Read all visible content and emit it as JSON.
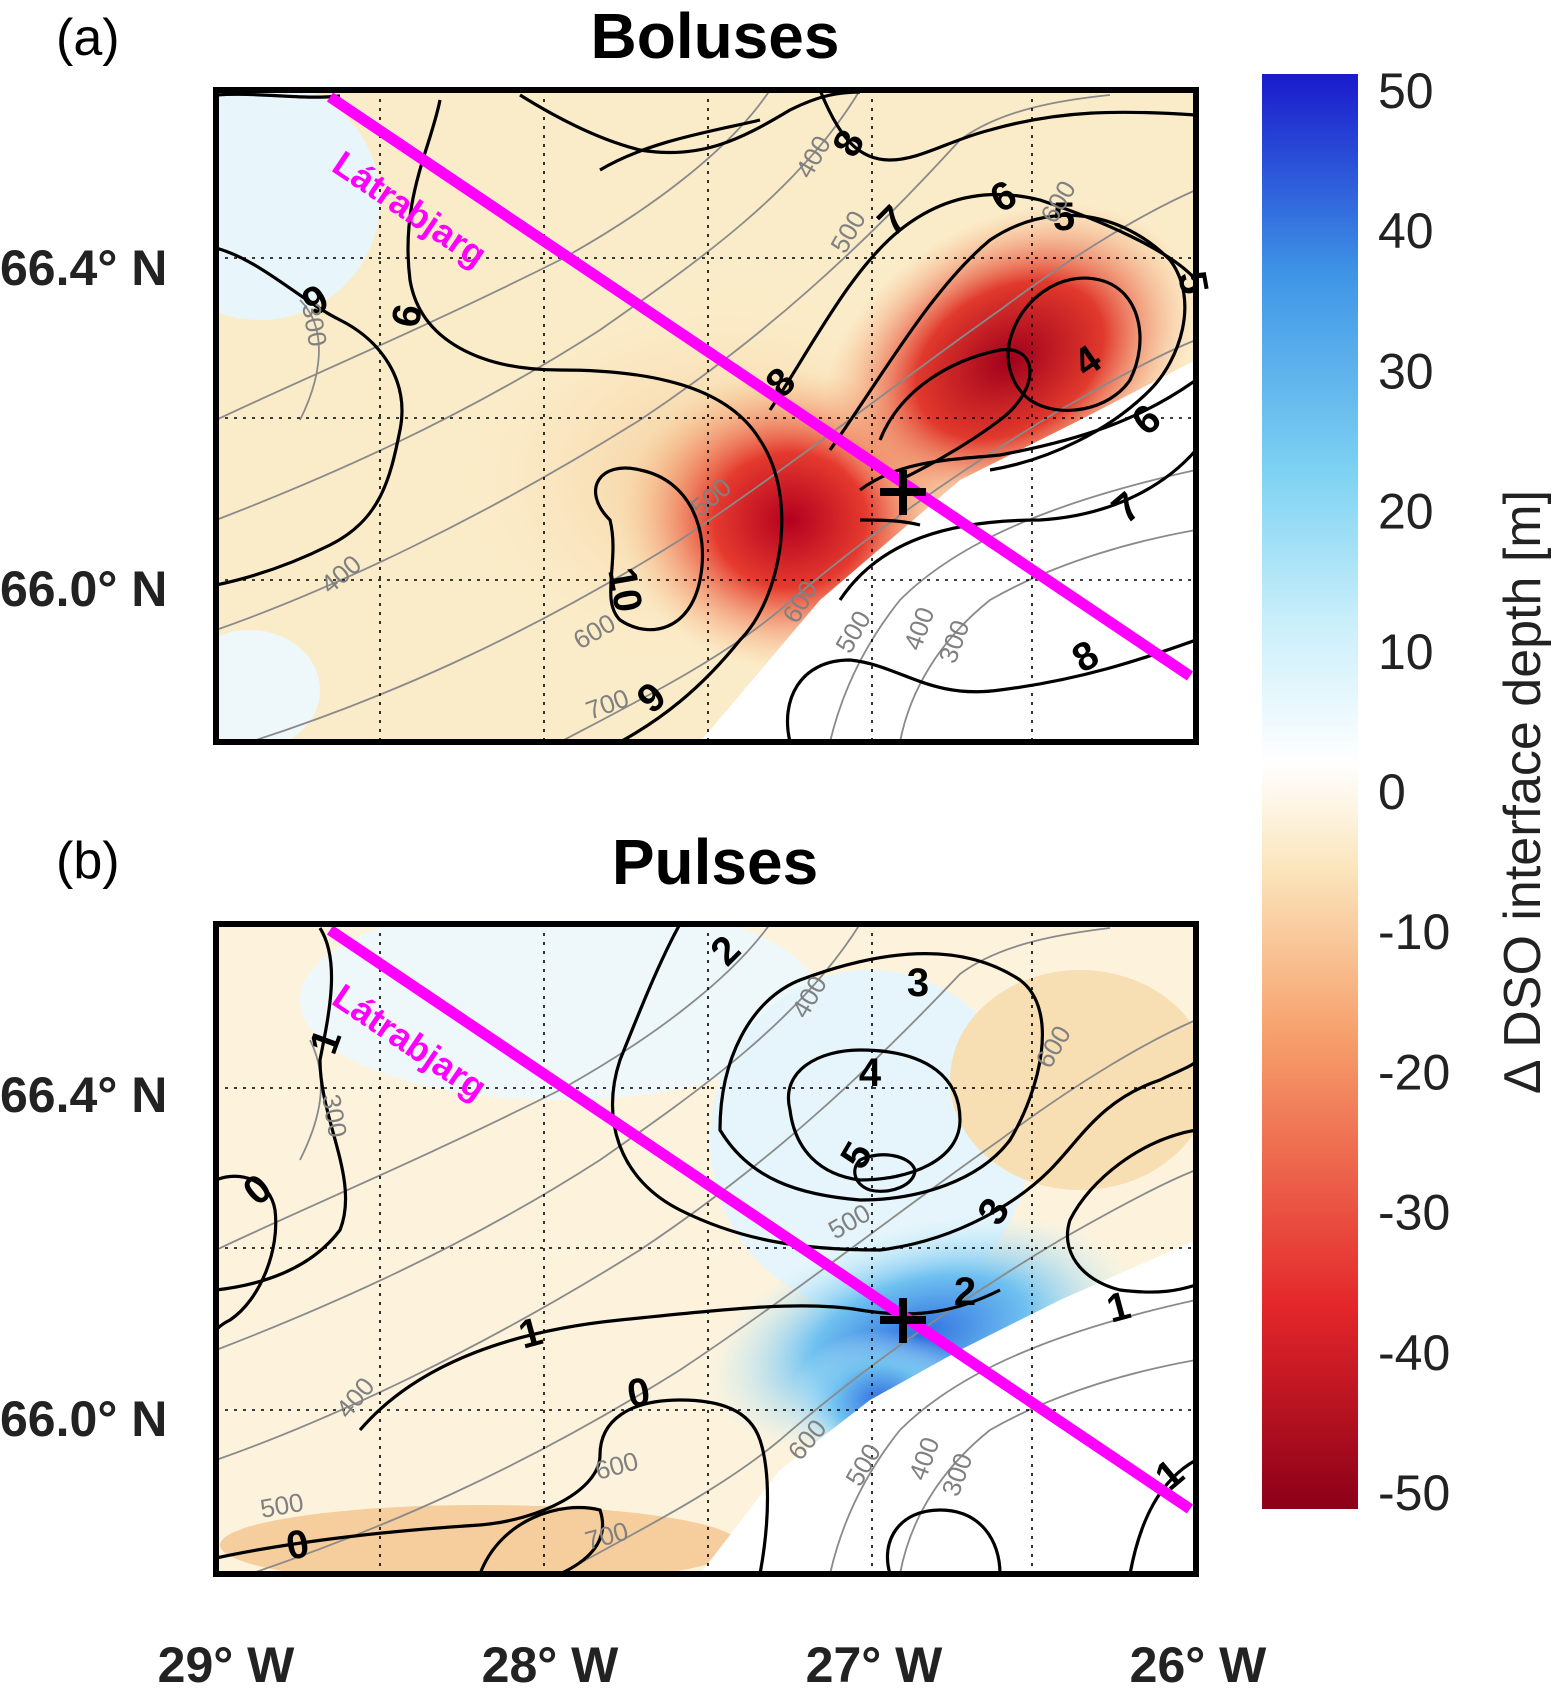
{
  "panels": [
    {
      "letter": "(a)",
      "title": "Boluses",
      "section_label": "Látrabjarg",
      "contour_labels": [
        "8",
        "7",
        "6",
        "5",
        "5",
        "4",
        "6",
        "7",
        "8",
        "9",
        "6",
        "8",
        "10",
        "9"
      ],
      "bathymetry_labels": [
        "400",
        "500",
        "600",
        "300",
        "500",
        "400",
        "600",
        "500",
        "400",
        "300",
        "600",
        "700"
      ]
    },
    {
      "letter": "(b)",
      "title": "Pulses",
      "section_label": "Látrabjarg",
      "contour_labels": [
        "2",
        "3",
        "4",
        "5",
        "3",
        "2",
        "1",
        "1",
        "1",
        "0",
        "1",
        "0",
        "0"
      ],
      "bathymetry_labels": [
        "400",
        "600",
        "300",
        "500",
        "400",
        "600",
        "500",
        "400",
        "300",
        "600",
        "500",
        "700"
      ]
    }
  ],
  "axes": {
    "lat_ticks": [
      "66.4° N",
      "66.0° N"
    ],
    "lon_ticks": [
      "29° W",
      "28° W",
      "27° W",
      "26° W"
    ]
  },
  "colorbar": {
    "label": "Δ DSO interface depth [m]",
    "ticks": [
      "50",
      "40",
      "30",
      "20",
      "10",
      "0",
      "-10",
      "-20",
      "-30",
      "-40",
      "-50"
    ],
    "range": [
      -50,
      50
    ],
    "colors_low_to_high": [
      "#8b0018",
      "#e3262a",
      "#f6a06c",
      "#fbe7bf",
      "#ffffff",
      "#c8eefa",
      "#7fd3f2",
      "#3f95e6",
      "#1a1acc"
    ]
  },
  "chart_data": [
    {
      "type": "heatmap",
      "title": "Boluses",
      "xlabel": "",
      "ylabel": "",
      "xlim": [
        29.5,
        26.0
      ],
      "ylim": [
        65.8,
        66.6
      ],
      "x_ticks": [
        "29° W",
        "28° W",
        "27° W",
        "26° W"
      ],
      "y_ticks": [
        "66.4° N",
        "66.0° N"
      ],
      "colorbar_label": "Δ DSO interface depth [m]",
      "colorbar_range": [
        -50,
        50
      ],
      "field_anomaly_max_negative": -50,
      "contours_black_levels": [
        4,
        5,
        6,
        7,
        8,
        9,
        10
      ],
      "bathymetry_levels_m": [
        300,
        400,
        500,
        600,
        700
      ],
      "mooring_marker": {
        "lon": 26.97,
        "lat": 66.12
      },
      "section": {
        "name": "Látrabjarg",
        "start": {
          "lon": 29.15,
          "lat": 66.6
        },
        "end": {
          "lon": 26.05,
          "lat": 65.9
        }
      }
    },
    {
      "type": "heatmap",
      "title": "Pulses",
      "xlabel": "",
      "ylabel": "",
      "xlim": [
        29.5,
        26.0
      ],
      "ylim": [
        65.8,
        66.6
      ],
      "x_ticks": [
        "29° W",
        "28° W",
        "27° W",
        "26° W"
      ],
      "y_ticks": [
        "66.4° N",
        "66.0° N"
      ],
      "colorbar_label": "Δ DSO interface depth [m]",
      "colorbar_range": [
        -50,
        50
      ],
      "field_anomaly_max_positive": 30,
      "contours_black_levels": [
        0,
        1,
        2,
        3,
        4,
        5
      ],
      "bathymetry_levels_m": [
        300,
        400,
        500,
        600,
        700
      ],
      "mooring_marker": {
        "lon": 26.97,
        "lat": 66.12
      },
      "section": {
        "name": "Látrabjarg",
        "start": {
          "lon": 29.15,
          "lat": 66.6
        },
        "end": {
          "lon": 26.05,
          "lat": 65.9
        }
      }
    }
  ]
}
